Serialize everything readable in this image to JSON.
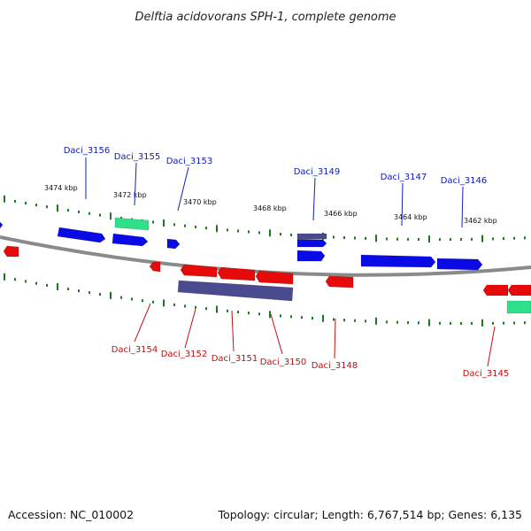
{
  "title": "Delftia acidovorans SPH-1, complete genome",
  "footer": {
    "accession": "Accession: NC_010002",
    "topology": "Topology: circular; Length: 6,767,514 bp; Genes: 6,135"
  },
  "colors": {
    "backbone": "#8a8a8a",
    "tick": "#1a7a1a",
    "gene_forward": "#0a0ae6",
    "gene_reverse": "#e60a0a",
    "gene_rna": "#2ee08a",
    "gene_other": "#4a4a90",
    "label_forward": "#1020b0",
    "label_reverse": "#c01010"
  },
  "ruler_labels": [
    "3474 kbp",
    "3472 kbp",
    "3470 kbp",
    "3468 kbp",
    "3466 kbp",
    "3464 kbp",
    "3462 kbp"
  ],
  "gene_labels_top": [
    "Daci_3156",
    "Daci_3155",
    "Daci_3153",
    "Daci_3149",
    "Daci_3147",
    "Daci_3146"
  ],
  "gene_labels_bottom": [
    "Daci_3154",
    "Daci_3152",
    "Daci_3151",
    "Daci_3150",
    "Daci_3148",
    "Daci_3145"
  ]
}
